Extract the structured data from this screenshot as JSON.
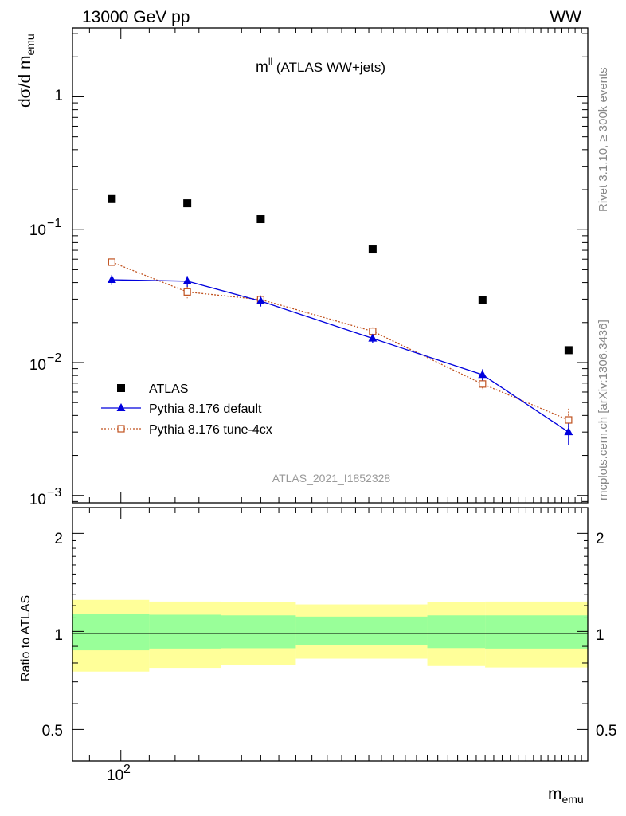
{
  "header": {
    "left": "13000 GeV pp",
    "right": "WW"
  },
  "side_notes": {
    "rivet": "Rivet 3.1.10, ≥ 300k events",
    "mcplots": "mcplots.cern.ch [arXiv:1306.3436]"
  },
  "chart_data": [
    {
      "type": "scatter",
      "title": "m^ll (ATLAS WW+jets)",
      "title_main": "m",
      "title_sup": "ll",
      "title_rest": " (ATLAS WW+jets)",
      "ylabel_main": "dσ/d m",
      "ylabel_sub": "emu",
      "xlabel_main": "m",
      "xlabel_sub": "emu",
      "watermark": "ATLAS_2021_I1852328",
      "xscale": "log",
      "yscale": "log",
      "xlim": [
        85,
        480
      ],
      "ylim": [
        0.00088,
        3.3
      ],
      "y_tick_labels": [
        "1",
        "10",
        "10",
        "10"
      ],
      "y_tick_exponents": [
        "",
        "−1",
        "−2",
        "−3"
      ],
      "x_tick_labels": [
        "10"
      ],
      "x_tick_exponents": [
        "2"
      ],
      "x_bin_edges": [
        85,
        110,
        140,
        180,
        280,
        340,
        480
      ],
      "legend_position": "lower-left",
      "series": [
        {
          "name": "ATLAS",
          "color": "#000000",
          "marker": "filled-square",
          "x": [
            97,
            125,
            160,
            233,
            337,
            450
          ],
          "y": [
            0.17,
            0.158,
            0.12,
            0.071,
            0.0295,
            0.0124
          ]
        },
        {
          "name": "Pythia 8.176 default",
          "color": "#0000dd",
          "marker": "filled-triangle",
          "line": "solid",
          "x": [
            97,
            125,
            160,
            233,
            337,
            450
          ],
          "y": [
            0.042,
            0.041,
            0.029,
            0.0152,
            0.0081,
            0.003
          ],
          "err_low": [
            0.0037,
            0.0038,
            0.0026,
            0.0011,
            0.0008,
            0.0006
          ],
          "err_high": [
            0.0037,
            0.0038,
            0.0026,
            0.0011,
            0.0008,
            0.0006
          ]
        },
        {
          "name": "Pythia 8.176 tune-4cx",
          "color": "#c0521f",
          "marker": "open-square",
          "line": "dotted",
          "x": [
            97,
            125,
            160,
            233,
            337,
            450
          ],
          "y": [
            0.057,
            0.034,
            0.0298,
            0.0172,
            0.0069,
            0.0037
          ],
          "err_low": [
            0.0035,
            0.0035,
            0.0022,
            0.0012,
            0.0007,
            0.0006
          ],
          "err_high": [
            0.0035,
            0.0035,
            0.0022,
            0.0012,
            0.0007,
            0.0008
          ]
        }
      ]
    },
    {
      "type": "area",
      "ylabel": "Ratio to ATLAS",
      "yscale": "log",
      "ylim": [
        0.4,
        2.4
      ],
      "y_ticks": [
        0.5,
        1,
        2
      ],
      "y_tick_labels": [
        "0.5",
        "1",
        "2"
      ],
      "reference_line": 1,
      "x_bin_edges": [
        85,
        110,
        140,
        180,
        280,
        340,
        480
      ],
      "bands": [
        {
          "name": "stat",
          "color": "#99ff99",
          "low": [
            0.875,
            0.886,
            0.888,
            0.908,
            0.889,
            0.886
          ],
          "high": [
            1.13,
            1.125,
            1.12,
            1.11,
            1.12,
            1.12
          ]
        },
        {
          "name": "total",
          "color": "#ffff99",
          "low": [
            0.753,
            0.773,
            0.788,
            0.825,
            0.783,
            0.775
          ],
          "high": [
            1.25,
            1.235,
            1.23,
            1.21,
            1.23,
            1.235
          ]
        }
      ]
    }
  ]
}
